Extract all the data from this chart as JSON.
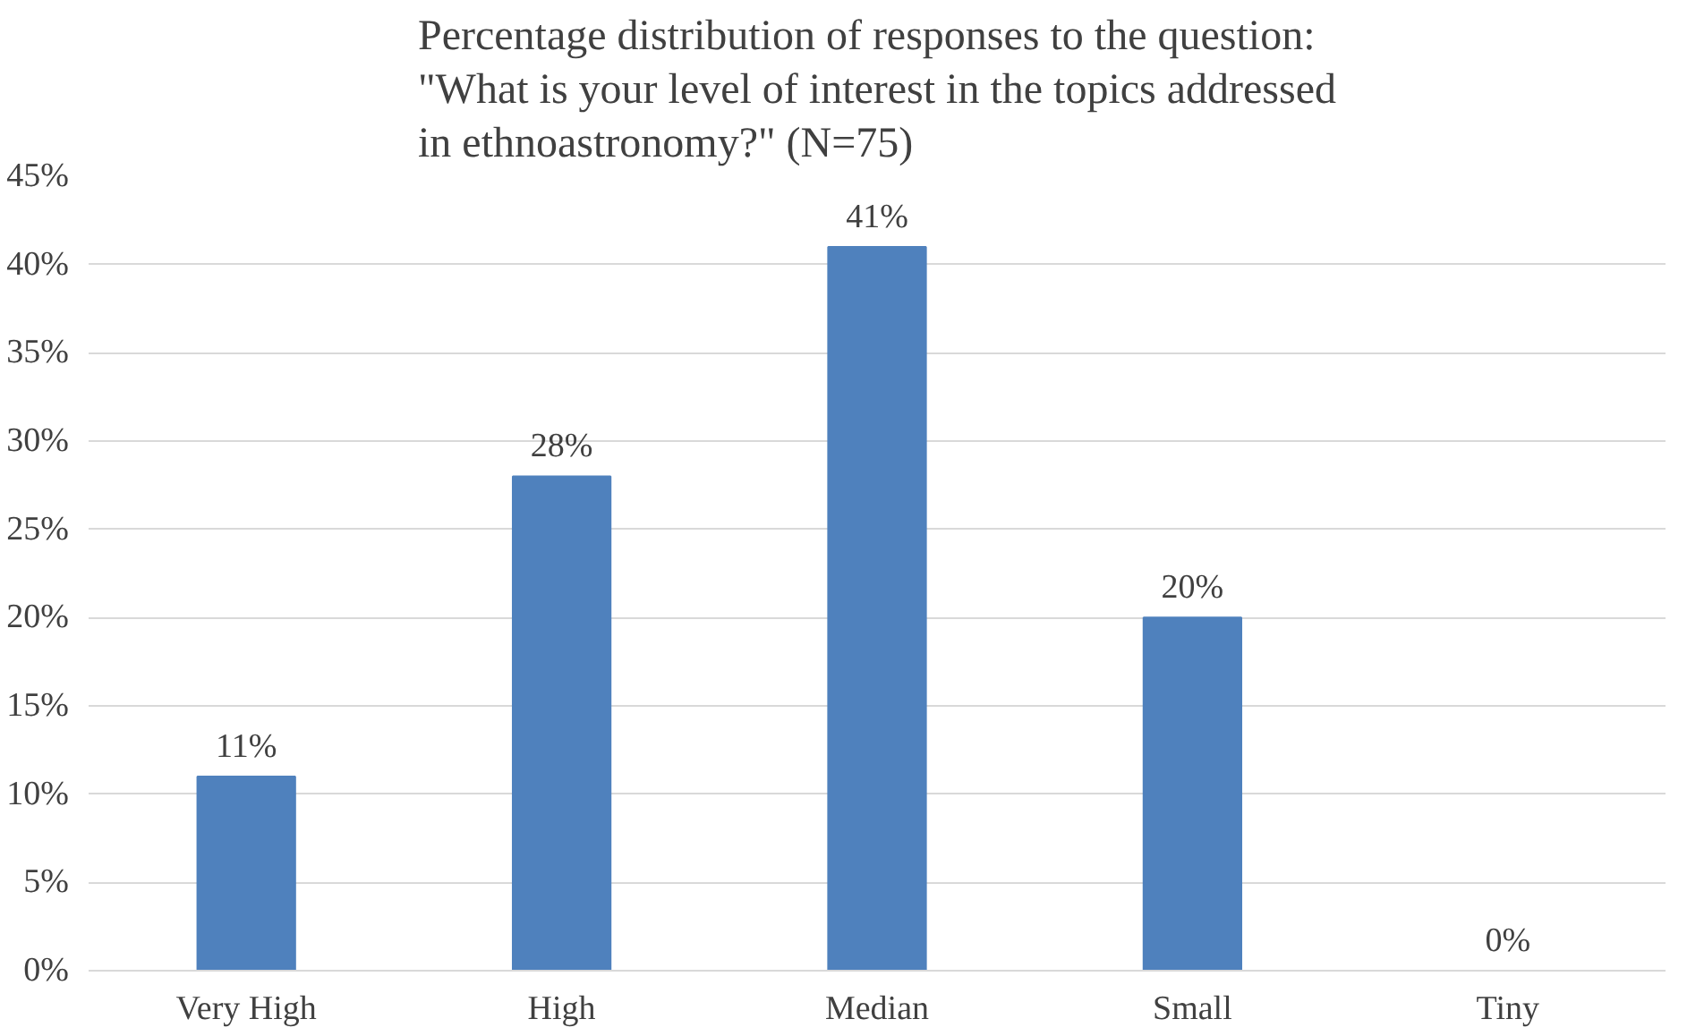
{
  "chart_data": {
    "type": "bar",
    "title": "Percentage distribution of responses to the question: \"What is your level of interest in the topics addressed in ethnoastronomy?\" (N=75)",
    "categories": [
      "Very High",
      "High",
      "Median",
      "Small",
      "Tiny"
    ],
    "values": [
      11,
      28,
      41,
      20,
      0
    ],
    "value_labels": [
      "11%",
      "28%",
      "41%",
      "20%",
      "0%"
    ],
    "color": "#4f81bd",
    "ylim": [
      0,
      45
    ],
    "yticks": [
      {
        "value": 0,
        "label": "0%"
      },
      {
        "value": 5,
        "label": "5%"
      },
      {
        "value": 10,
        "label": "10%"
      },
      {
        "value": 15,
        "label": "15%"
      },
      {
        "value": 20,
        "label": "20%"
      },
      {
        "value": 25,
        "label": "25%"
      },
      {
        "value": 30,
        "label": "30%"
      },
      {
        "value": 35,
        "label": "35%"
      },
      {
        "value": 40,
        "label": "40%"
      },
      {
        "value": 45,
        "label": "45%"
      }
    ],
    "grid": "y"
  }
}
